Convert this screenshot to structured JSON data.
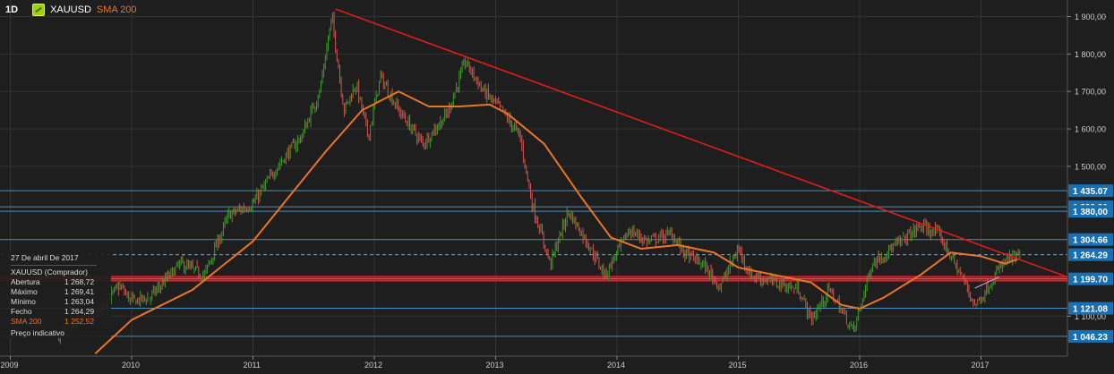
{
  "header": {
    "timeframe": "1D",
    "symbol_icon": "gold-bar-icon",
    "symbol": "XAUUSD",
    "indicator": "SMA 200"
  },
  "info_panel": {
    "date": "27 De abril De 2017",
    "title": "XAUUSD (Comprador)",
    "rows": [
      {
        "label": "Abertura",
        "value": "1 268,72"
      },
      {
        "label": "Máximo",
        "value": "1 269,41"
      },
      {
        "label": "Mínimo",
        "value": "1 263,04"
      },
      {
        "label": "Fecho",
        "value": "1 264,29"
      },
      {
        "label": "SMA 200",
        "value": "1 252,52"
      }
    ],
    "footer": "Preço indicativo"
  },
  "colors": {
    "background": "#1e1e1e",
    "grid": "#3a3a3a",
    "up_candle": "#3f9b2b",
    "down_candle": "#d9534f",
    "sma": "#e8742a",
    "trendline": "#e01b1b",
    "level_line": "#4a90c2",
    "price_badge": "#1a6fb0",
    "support_zone": "#e01b1b"
  },
  "chart_data": {
    "type": "candlestick",
    "symbol": "XAUUSD",
    "timeframe": "1D",
    "ylim": [
      1080,
      1930
    ],
    "xlim": [
      2008.72,
      2017.75
    ],
    "x_ticks": [
      "2009",
      "2010",
      "2011",
      "2012",
      "2013",
      "2014",
      "2015",
      "2016",
      "2017"
    ],
    "y_ticks": [
      "1 900,00",
      "1 800,00",
      "1 700,00",
      "1 600,00",
      "1 500,00",
      "1 100,00"
    ],
    "y_tick_values": [
      1900,
      1800,
      1700,
      1600,
      1500,
      1100
    ],
    "price_path": [
      [
        2009.4,
        1050
      ],
      [
        2009.7,
        1110
      ],
      [
        2009.9,
        1180
      ],
      [
        2010.0,
        1140
      ],
      [
        2010.15,
        1150
      ],
      [
        2010.4,
        1240
      ],
      [
        2010.6,
        1210
      ],
      [
        2010.8,
        1370
      ],
      [
        2011.0,
        1400
      ],
      [
        2011.2,
        1500
      ],
      [
        2011.4,
        1580
      ],
      [
        2011.55,
        1700
      ],
      [
        2011.65,
        1900
      ],
      [
        2011.75,
        1650
      ],
      [
        2011.85,
        1720
      ],
      [
        2011.95,
        1580
      ],
      [
        2012.05,
        1740
      ],
      [
        2012.2,
        1650
      ],
      [
        2012.4,
        1560
      ],
      [
        2012.6,
        1640
      ],
      [
        2012.75,
        1780
      ],
      [
        2012.9,
        1700
      ],
      [
        2013.05,
        1650
      ],
      [
        2013.2,
        1580
      ],
      [
        2013.3,
        1400
      ],
      [
        2013.45,
        1240
      ],
      [
        2013.6,
        1380
      ],
      [
        2013.75,
        1300
      ],
      [
        2013.9,
        1210
      ],
      [
        2014.1,
        1330
      ],
      [
        2014.25,
        1300
      ],
      [
        2014.45,
        1320
      ],
      [
        2014.55,
        1270
      ],
      [
        2014.7,
        1240
      ],
      [
        2014.85,
        1180
      ],
      [
        2015.0,
        1280
      ],
      [
        2015.1,
        1210
      ],
      [
        2015.3,
        1190
      ],
      [
        2015.5,
        1170
      ],
      [
        2015.6,
        1090
      ],
      [
        2015.75,
        1170
      ],
      [
        2015.95,
        1060
      ],
      [
        2016.1,
        1240
      ],
      [
        2016.3,
        1290
      ],
      [
        2016.5,
        1340
      ],
      [
        2016.65,
        1320
      ],
      [
        2016.85,
        1200
      ],
      [
        2016.95,
        1130
      ],
      [
        2017.0,
        1150
      ],
      [
        2017.2,
        1250
      ],
      [
        2017.32,
        1260
      ]
    ],
    "sma_200": [
      [
        2009.7,
        1000
      ],
      [
        2010.0,
        1090
      ],
      [
        2010.5,
        1170
      ],
      [
        2011.0,
        1300
      ],
      [
        2011.3,
        1420
      ],
      [
        2011.6,
        1540
      ],
      [
        2011.9,
        1650
      ],
      [
        2012.2,
        1700
      ],
      [
        2012.45,
        1660
      ],
      [
        2012.7,
        1660
      ],
      [
        2012.95,
        1665
      ],
      [
        2013.1,
        1640
      ],
      [
        2013.4,
        1560
      ],
      [
        2013.7,
        1420
      ],
      [
        2013.95,
        1310
      ],
      [
        2014.2,
        1280
      ],
      [
        2014.5,
        1290
      ],
      [
        2014.8,
        1270
      ],
      [
        2015.0,
        1230
      ],
      [
        2015.3,
        1210
      ],
      [
        2015.6,
        1190
      ],
      [
        2015.85,
        1130
      ],
      [
        2016.0,
        1120
      ],
      [
        2016.2,
        1150
      ],
      [
        2016.5,
        1210
      ],
      [
        2016.75,
        1270
      ],
      [
        2017.0,
        1260
      ],
      [
        2017.2,
        1240
      ],
      [
        2017.3,
        1252.52
      ]
    ],
    "trendline": [
      [
        2011.68,
        1920
      ],
      [
        2017.75,
        1200
      ]
    ],
    "support_zone": [
      1195,
      1205
    ],
    "minor_trendline": [
      [
        2016.95,
        1175
      ],
      [
        2017.15,
        1205
      ]
    ],
    "horizontal_levels": [
      {
        "value": 1435.07,
        "label": "1 435.07"
      },
      {
        "value": 1392.2,
        "label": "1 392.20"
      },
      {
        "value": 1380,
        "label": "1 380,00"
      },
      {
        "value": 1304.66,
        "label": "1 304.66"
      },
      {
        "value": 1264.29,
        "label": "1 264.29",
        "style": "dashed"
      },
      {
        "value": 1199.7,
        "label": "1 199.70"
      },
      {
        "value": 1121.08,
        "label": "1 121.08"
      },
      {
        "value": 1046.23,
        "label": "1 046.23"
      }
    ]
  }
}
